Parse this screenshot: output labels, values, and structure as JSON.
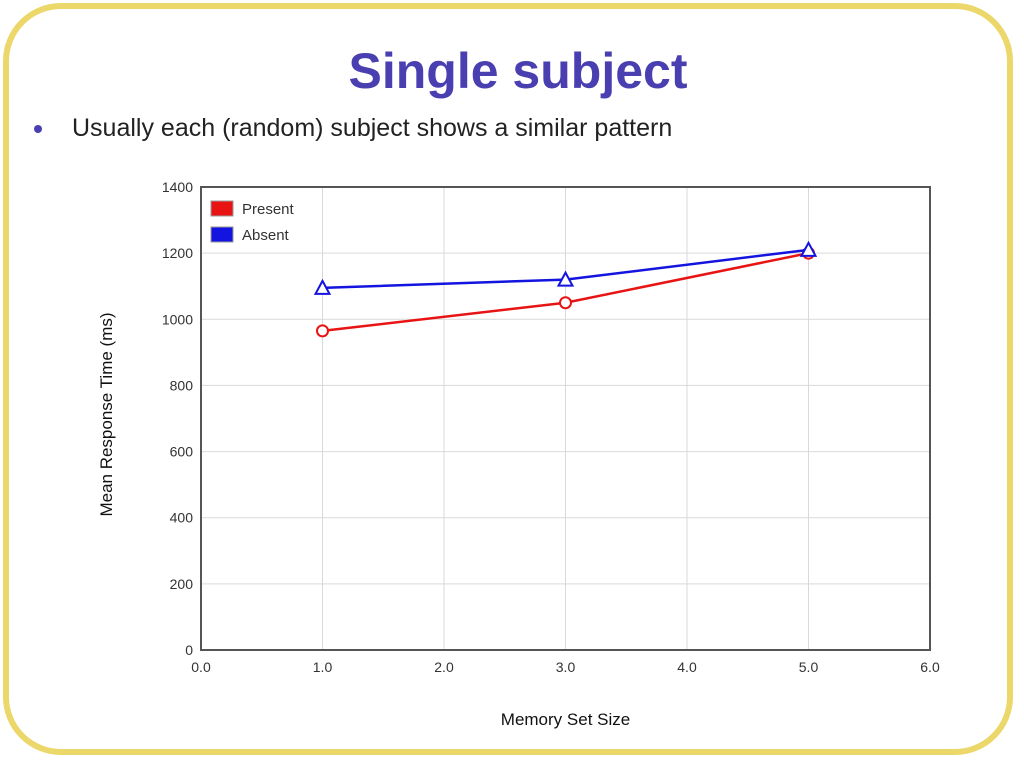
{
  "slide": {
    "title": "Single subject",
    "bullets": [
      "Usually each (random) subject shows a similar pattern"
    ]
  },
  "colors": {
    "title": "#4a3fb0",
    "frame": "#ecd76a",
    "present": "#e81414",
    "absent": "#1414e0",
    "grid": "#d9d9d9",
    "axis": "#555555"
  },
  "chart_data": {
    "type": "line",
    "title": "",
    "xlabel": "Memory Set Size",
    "ylabel": "Mean Response Time (ms)",
    "xlim": [
      0,
      6
    ],
    "ylim": [
      0,
      1400
    ],
    "x_ticks": [
      0,
      1,
      2,
      3,
      4,
      5,
      6
    ],
    "x_tick_labels": [
      "0.0",
      "1.0",
      "2.0",
      "3.0",
      "4.0",
      "5.0",
      "6.0"
    ],
    "y_ticks": [
      0,
      200,
      400,
      600,
      800,
      1000,
      1200,
      1400
    ],
    "y_tick_labels": [
      "0",
      "200",
      "400",
      "600",
      "800",
      "1000",
      "1200",
      "1400"
    ],
    "grid": true,
    "legend_position": "top-left",
    "series": [
      {
        "name": "Present",
        "color": "#e81414",
        "marker": "circle",
        "x": [
          1,
          3,
          5
        ],
        "y": [
          965,
          1050,
          1200
        ]
      },
      {
        "name": "Absent",
        "color": "#1414e0",
        "marker": "triangle",
        "x": [
          1,
          3,
          5
        ],
        "y": [
          1095,
          1120,
          1210
        ]
      }
    ]
  }
}
